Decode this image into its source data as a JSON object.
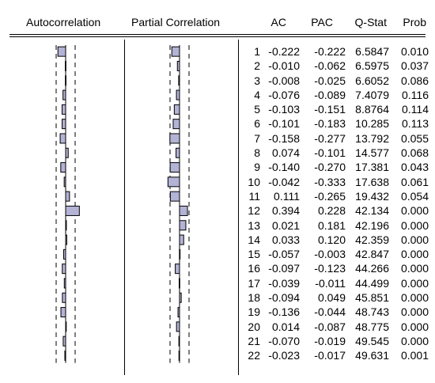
{
  "headers": {
    "autocorrelation": "Autocorrelation",
    "partial_correlation": "Partial Correlation",
    "ac": "AC",
    "pac": "PAC",
    "qstat": "Q-Stat",
    "prob": "Prob"
  },
  "colors": {
    "bar_fill": "#b3b3d6",
    "bar_stroke": "#000000",
    "text": "#000000",
    "background": "#ffffff"
  },
  "rows": [
    {
      "lag": "1",
      "ac": "-0.222",
      "pac": "-0.222",
      "q": "6.5847",
      "prob": "0.010"
    },
    {
      "lag": "2",
      "ac": "-0.010",
      "pac": "-0.062",
      "q": "6.5975",
      "prob": "0.037"
    },
    {
      "lag": "3",
      "ac": "-0.008",
      "pac": "-0.025",
      "q": "6.6052",
      "prob": "0.086"
    },
    {
      "lag": "4",
      "ac": "-0.076",
      "pac": "-0.089",
      "q": "7.4079",
      "prob": "0.116"
    },
    {
      "lag": "5",
      "ac": "-0.103",
      "pac": "-0.151",
      "q": "8.8764",
      "prob": "0.114"
    },
    {
      "lag": "6",
      "ac": "-0.101",
      "pac": "-0.183",
      "q": "10.285",
      "prob": "0.113"
    },
    {
      "lag": "7",
      "ac": "-0.158",
      "pac": "-0.277",
      "q": "13.792",
      "prob": "0.055"
    },
    {
      "lag": "8",
      "ac": "0.074",
      "pac": "-0.101",
      "q": "14.577",
      "prob": "0.068"
    },
    {
      "lag": "9",
      "ac": "-0.140",
      "pac": "-0.270",
      "q": "17.381",
      "prob": "0.043"
    },
    {
      "lag": "10",
      "ac": "-0.042",
      "pac": "-0.333",
      "q": "17.638",
      "prob": "0.061"
    },
    {
      "lag": "11",
      "ac": "0.111",
      "pac": "-0.265",
      "q": "19.432",
      "prob": "0.054"
    },
    {
      "lag": "12",
      "ac": "0.394",
      "pac": "0.228",
      "q": "42.134",
      "prob": "0.000"
    },
    {
      "lag": "13",
      "ac": "0.021",
      "pac": "0.181",
      "q": "42.196",
      "prob": "0.000"
    },
    {
      "lag": "14",
      "ac": "0.033",
      "pac": "0.120",
      "q": "42.359",
      "prob": "0.000"
    },
    {
      "lag": "15",
      "ac": "-0.057",
      "pac": "-0.003",
      "q": "42.847",
      "prob": "0.000"
    },
    {
      "lag": "16",
      "ac": "-0.097",
      "pac": "-0.123",
      "q": "44.266",
      "prob": "0.000"
    },
    {
      "lag": "17",
      "ac": "-0.039",
      "pac": "-0.011",
      "q": "44.499",
      "prob": "0.000"
    },
    {
      "lag": "18",
      "ac": "-0.094",
      "pac": "0.049",
      "q": "45.851",
      "prob": "0.000"
    },
    {
      "lag": "19",
      "ac": "-0.136",
      "pac": "-0.044",
      "q": "48.743",
      "prob": "0.000"
    },
    {
      "lag": "20",
      "ac": "0.014",
      "pac": "-0.087",
      "q": "48.775",
      "prob": "0.000"
    },
    {
      "lag": "21",
      "ac": "-0.070",
      "pac": "-0.019",
      "q": "49.545",
      "prob": "0.000"
    },
    {
      "lag": "22",
      "ac": "-0.023",
      "pac": "-0.017",
      "q": "49.631",
      "prob": "0.001"
    }
  ]
}
